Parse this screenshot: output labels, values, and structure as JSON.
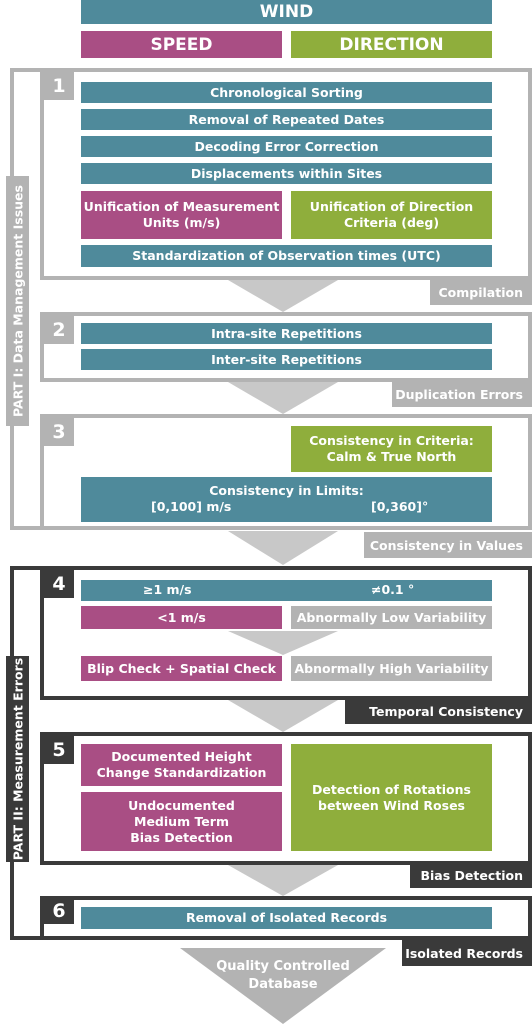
{
  "header": {
    "wind": "WIND",
    "speed": "SPEED",
    "direction": "DIRECTION"
  },
  "parts": {
    "part1": "PART I: Data Management Issues",
    "part2": "PART II: Measurement Errors"
  },
  "step1": {
    "number": "1",
    "chronological": "Chronological Sorting",
    "repeated_dates": "Removal of Repeated Dates",
    "decoding": "Decoding Error Correction",
    "displacements": "Displacements within Sites",
    "unif_units_l1": "Unification of Measurement",
    "unif_units_l2": "Units (m/s)",
    "unif_dir_l1": "Unification of Direction",
    "unif_dir_l2": "Criteria (deg)",
    "standardization": "Standardization of Observation times (UTC)",
    "label": "Compilation"
  },
  "step2": {
    "number": "2",
    "intra": "Intra-site Repetitions",
    "inter": "Inter-site Repetitions",
    "label": "Duplication Errors"
  },
  "step3": {
    "number": "3",
    "criteria_l1": "Consistency in Criteria:",
    "criteria_l2": "Calm & True North",
    "limits_title": "Consistency in Limits:",
    "limits_speed": "[0,100] m/s",
    "limits_dir": "[0,360]°",
    "label": "Consistency in Values"
  },
  "step4": {
    "number": "4",
    "ge1": "≥1 m/s",
    "ne01": "≠0.1 °",
    "lt1": "<1 m/s",
    "low_var": "Abnormally Low Variability",
    "blip": "Blip Check + Spatial Check",
    "high_var": "Abnormally High Variability",
    "label": "Temporal Consistency"
  },
  "step5": {
    "number": "5",
    "documented_l1": "Documented Height",
    "documented_l2": "Change Standardization",
    "undoc_l1": "Undocumented",
    "undoc_l2": "Medium Term",
    "undoc_l3": "Bias Detection",
    "rotations_l1": "Detection of Rotations",
    "rotations_l2": "between Wind Roses",
    "label": "Bias Detection"
  },
  "step6": {
    "number": "6",
    "isolated": "Removal of Isolated Records",
    "label": "Isolated Records"
  },
  "final": {
    "line1": "Quality Controlled",
    "line2": "Database"
  },
  "colors": {
    "teal": "#4f8a9b",
    "magenta": "#a94e84",
    "lime": "#8fae3c",
    "grey": "#b3b3b3",
    "dark": "#3a3a3a"
  }
}
